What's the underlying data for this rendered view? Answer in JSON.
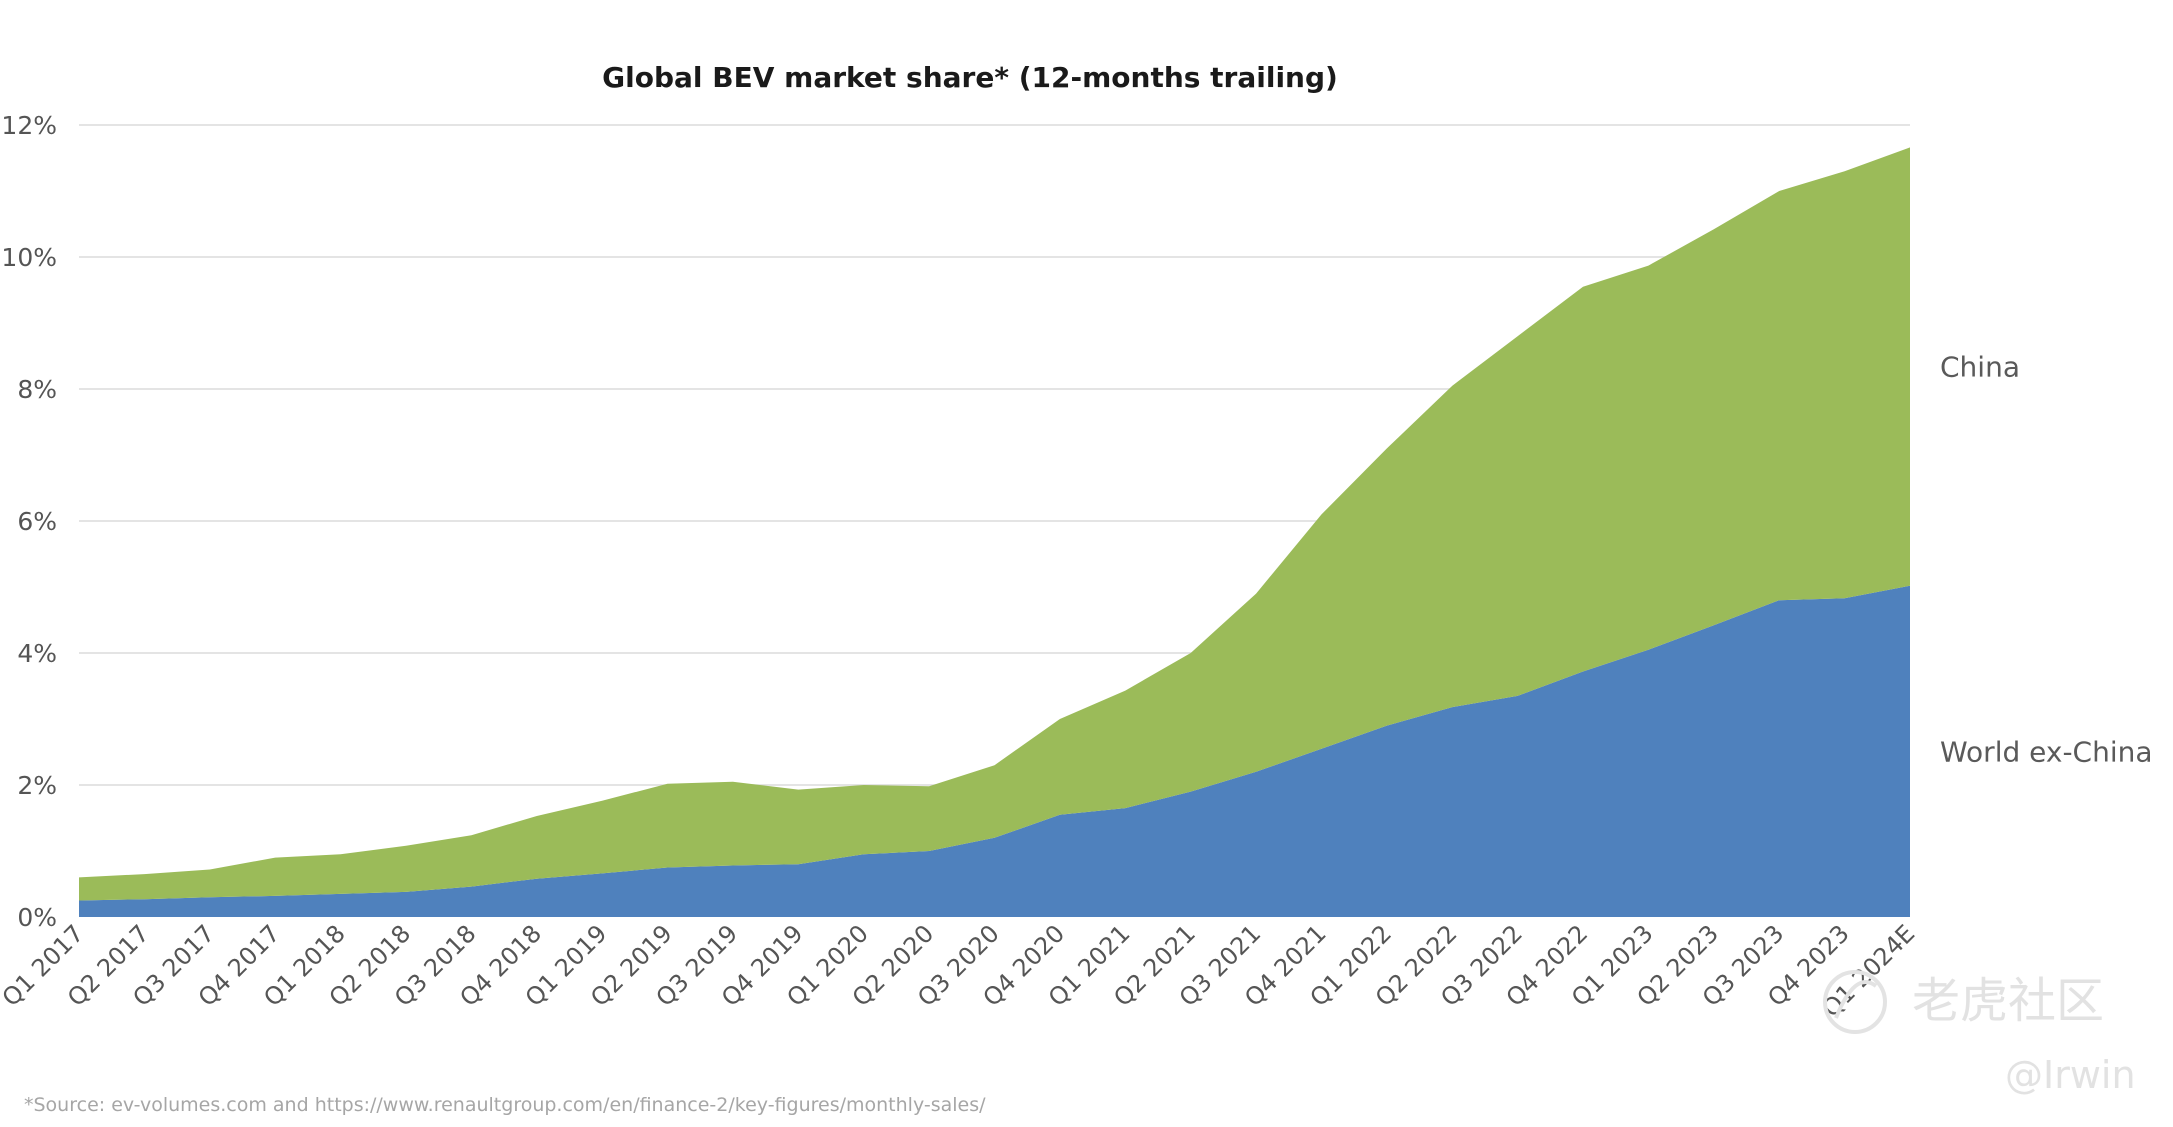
{
  "chart_data": {
    "type": "area",
    "stacked": true,
    "title": "Global BEV market share* (12-months trailing)",
    "xlabel": "",
    "ylabel": "",
    "ylim": [
      0,
      12
    ],
    "yticks": [
      0,
      2,
      4,
      6,
      8,
      10,
      12
    ],
    "ytick_labels": [
      "0%",
      "2%",
      "4%",
      "6%",
      "8%",
      "10%",
      "12%"
    ],
    "grid": true,
    "legend": "right-side direct labels",
    "categories": [
      "Q1 2017",
      "Q2 2017",
      "Q3 2017",
      "Q4 2017",
      "Q1 2018",
      "Q2 2018",
      "Q3 2018",
      "Q4 2018",
      "Q1 2019",
      "Q2 2019",
      "Q3 2019",
      "Q4 2019",
      "Q1 2020",
      "Q2 2020",
      "Q3 2020",
      "Q4 2020",
      "Q1 2021",
      "Q2 2021",
      "Q3 2021",
      "Q4 2021",
      "Q1 2022",
      "Q2 2022",
      "Q3 2022",
      "Q4 2022",
      "Q1 2023",
      "Q2 2023",
      "Q3 2023",
      "Q4 2023",
      "Q1 2024E"
    ],
    "series": [
      {
        "name": "World ex-China",
        "color": "#4f81bd",
        "values": [
          0.25,
          0.27,
          0.3,
          0.32,
          0.35,
          0.38,
          0.46,
          0.58,
          0.66,
          0.75,
          0.78,
          0.8,
          0.95,
          1.0,
          1.2,
          1.55,
          1.65,
          1.9,
          2.2,
          2.55,
          2.9,
          3.18,
          3.35,
          3.72,
          4.05,
          4.42,
          4.8,
          4.83,
          5.02
        ]
      },
      {
        "name": "China",
        "color": "#9bbb59",
        "values": [
          0.35,
          0.38,
          0.42,
          0.58,
          0.6,
          0.7,
          0.78,
          0.95,
          1.1,
          1.27,
          1.27,
          1.13,
          1.05,
          0.98,
          1.1,
          1.45,
          1.78,
          2.1,
          2.7,
          3.55,
          4.2,
          4.87,
          5.45,
          5.83,
          5.82,
          6.0,
          6.2,
          6.47,
          6.64
        ]
      }
    ],
    "source_note": "*Source: ev-volumes.com and https://www.renaultgroup.com/en/finance-2/key-figures/monthly-sales/"
  },
  "watermark": {
    "brand": "老虎社区",
    "user": "@Irwin"
  }
}
